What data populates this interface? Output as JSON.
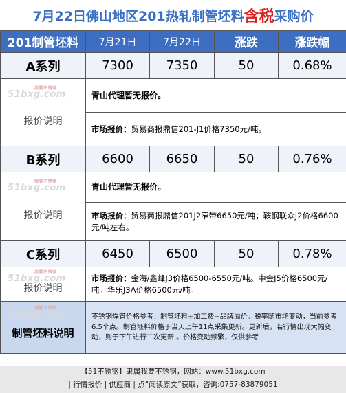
{
  "title": {
    "prefix": "7月22日佛山地区201热轧制管坯料",
    "highlight": "含税",
    "suffix": "采购价"
  },
  "header": [
    "201制管坯料",
    "7月21日",
    "7月22日",
    "涨跌",
    "涨跌幅"
  ],
  "series": [
    {
      "name": "A系列",
      "d1": "7300",
      "d2": "7350",
      "change": "50",
      "pct": "0.68%",
      "label": "报价说明",
      "watermark": "51bxg.com",
      "watermark_small": "我要不锈钢",
      "note1": "青山代理暂无报价。",
      "note2_label": "市场报价：",
      "note2_text": "贸易商报鼎信201-J1价格7350元/吨。"
    },
    {
      "name": "B系列",
      "d1": "6600",
      "d2": "6650",
      "change": "50",
      "pct": "0.76%",
      "label": "报价说明",
      "watermark": "51bxg.com",
      "watermark_small": "我要不锈钢",
      "note1": "青山代理暂无报价。",
      "note2_label": "市场报价：",
      "note2_text": "贸易商报鼎信201J2窄带6650元/吨；鞍钢联众J2价格6600元/吨左右。"
    },
    {
      "name": "C系列",
      "d1": "6450",
      "d2": "6500",
      "change": "50",
      "pct": "0.78%",
      "label": "报价说明",
      "watermark": "51bxg.com",
      "watermark_small": "我要不锈钢",
      "note2_label": "市场报价：",
      "note2_text": "金海/鑫峰J3价格6500-6550元/吨。中金J5价格6500元/吨。华乐J3A价格6500元/吨。"
    }
  ],
  "footer_block": {
    "label": "制管坯料说明",
    "watermark": "51bxg.com",
    "watermark_small": "我要不锈钢",
    "text": "不锈钢焊管价格参考：制管坯料+加工费+品牌溢价。税率随市场变动，当前参考6.5个点。制管坯料价格于当天上午11点采集更新。更新后，若行情出现大幅变动，则于下午进行二次更新 。价格变动频繁，仅供参考"
  },
  "footer": {
    "line1": "【51不锈钢】隶属我要不锈钢，网站：www.51bxg.com",
    "line2": "| 行情报价 | 供应商 | 点“阅读原文”获取，咨询:0757-83879051"
  }
}
